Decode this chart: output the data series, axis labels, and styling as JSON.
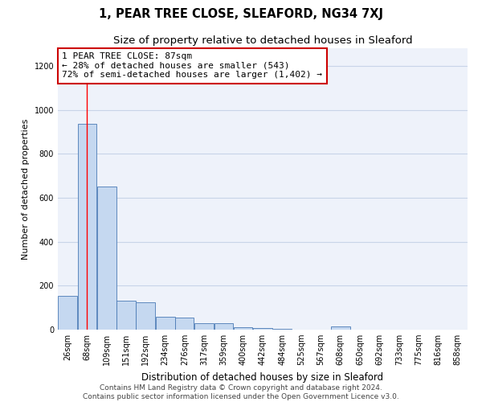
{
  "title": "1, PEAR TREE CLOSE, SLEAFORD, NG34 7XJ",
  "subtitle": "Size of property relative to detached houses in Sleaford",
  "xlabel": "Distribution of detached houses by size in Sleaford",
  "ylabel": "Number of detached properties",
  "bar_color": "#c5d8f0",
  "bar_edge_color": "#4a7ab5",
  "grid_color": "#c8d4e8",
  "background_color": "#eef2fa",
  "annotation_box_color": "#cc0000",
  "annotation_text": "1 PEAR TREE CLOSE: 87sqm\n← 28% of detached houses are smaller (543)\n72% of semi-detached houses are larger (1,402) →",
  "property_line_x": 87,
  "categories": [
    "26sqm",
    "68sqm",
    "109sqm",
    "151sqm",
    "192sqm",
    "234sqm",
    "276sqm",
    "317sqm",
    "359sqm",
    "400sqm",
    "442sqm",
    "484sqm",
    "525sqm",
    "567sqm",
    "608sqm",
    "650sqm",
    "692sqm",
    "733sqm",
    "775sqm",
    "816sqm",
    "858sqm"
  ],
  "bin_edges": [
    26,
    68,
    109,
    151,
    192,
    234,
    276,
    317,
    359,
    400,
    442,
    484,
    525,
    567,
    608,
    650,
    692,
    733,
    775,
    816,
    858,
    900
  ],
  "values": [
    155,
    935,
    650,
    130,
    125,
    58,
    55,
    28,
    30,
    10,
    8,
    2,
    0,
    0,
    15,
    0,
    0,
    0,
    0,
    0,
    0
  ],
  "ylim": [
    0,
    1280
  ],
  "yticks": [
    0,
    200,
    400,
    600,
    800,
    1000,
    1200
  ],
  "footnote": "Contains HM Land Registry data © Crown copyright and database right 2024.\nContains public sector information licensed under the Open Government Licence v3.0.",
  "title_fontsize": 10.5,
  "subtitle_fontsize": 9.5,
  "xlabel_fontsize": 8.5,
  "ylabel_fontsize": 8,
  "tick_fontsize": 7,
  "annot_fontsize": 8,
  "footnote_fontsize": 6.5
}
